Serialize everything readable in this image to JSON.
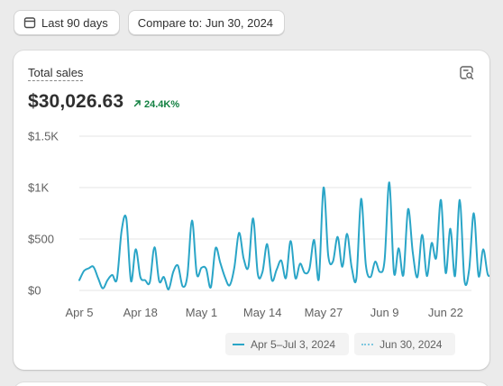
{
  "toolbar": {
    "date_range": {
      "label": "Last 90 days",
      "icon": "calendar-icon"
    },
    "compare": {
      "label": "Compare to: Jun 30, 2024"
    }
  },
  "card": {
    "title": "Total sales",
    "action_icon": "search-chart-icon",
    "value": "$30,026.63",
    "delta": {
      "text": "24.4K%",
      "direction": "up",
      "color": "#128041"
    }
  },
  "colors": {
    "primary_line": "#2aa5c7",
    "comparison_line": "#7fc8e0",
    "grid": "#e5e5e5"
  },
  "chart_data": {
    "type": "line",
    "y_ticks": [
      "$1.5K",
      "$1K",
      "$500",
      "$0"
    ],
    "y_tick_values": [
      1500,
      1000,
      500,
      0
    ],
    "ylim": [
      0,
      1500
    ],
    "x_ticks": [
      "Apr 5",
      "Apr 18",
      "May 1",
      "May 14",
      "May 27",
      "Jun 9",
      "Jun 22"
    ],
    "x_tick_days": [
      0,
      13,
      26,
      39,
      52,
      65,
      78
    ],
    "x_range_days": [
      0,
      89
    ],
    "grid": true,
    "legend_position": "bottom-right",
    "series": [
      {
        "name": "Apr 5–Jul 3, 2024",
        "style": "solid",
        "values": [
          100,
          190,
          215,
          230,
          120,
          20,
          100,
          150,
          110,
          580,
          700,
          90,
          400,
          130,
          100,
          80,
          420,
          90,
          130,
          10,
          180,
          240,
          40,
          140,
          680,
          160,
          220,
          210,
          30,
          410,
          270,
          130,
          50,
          220,
          560,
          310,
          230,
          700,
          160,
          180,
          450,
          100,
          200,
          290,
          120,
          480,
          120,
          260,
          170,
          210,
          490,
          110,
          1000,
          340,
          280,
          520,
          230,
          550,
          220,
          120,
          890,
          250,
          130,
          280,
          180,
          290,
          1050,
          170,
          410,
          150,
          790,
          370,
          130,
          540,
          140,
          460,
          320,
          880,
          170,
          600,
          140,
          880,
          100,
          200,
          750,
          140,
          400,
          150,
          190
        ]
      },
      {
        "name": "Jun 30, 2024",
        "style": "dotted",
        "values": []
      }
    ]
  }
}
